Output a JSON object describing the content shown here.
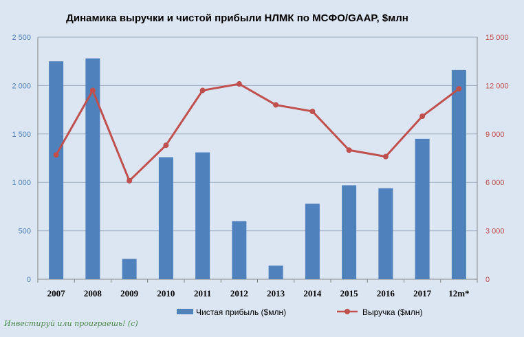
{
  "chart_data": {
    "type": "bar",
    "title": "Динамика выручки  и чистой прибыли НЛМК по МСФО/GAAP, $млн",
    "categories": [
      "2007",
      "2008",
      "2009",
      "2010",
      "2011",
      "2012",
      "2013",
      "2014",
      "2015",
      "2016",
      "2017",
      "12m*"
    ],
    "series": [
      {
        "name": "Чистая прибыль ($млн)",
        "type": "bar",
        "axis": "left",
        "color": "#4f81bd",
        "values": [
          2250,
          2280,
          210,
          1260,
          1310,
          600,
          140,
          780,
          970,
          940,
          1450,
          2160
        ]
      },
      {
        "name": "Выручка ($млн)",
        "type": "line",
        "axis": "right",
        "color": "#c0504d",
        "values": [
          7700,
          11700,
          6100,
          8300,
          11700,
          12100,
          10800,
          10400,
          8000,
          7600,
          10100,
          11800
        ]
      }
    ],
    "left_axis": {
      "ylim": [
        0,
        2500
      ],
      "ticks": [
        0,
        500,
        1000,
        1500,
        2000,
        2500
      ],
      "tick_labels": [
        "0",
        "500",
        "1 000",
        "1 500",
        "2 000",
        "2 500"
      ]
    },
    "right_axis": {
      "ylim": [
        0,
        15000
      ],
      "ticks": [
        0,
        3000,
        6000,
        9000,
        12000,
        15000
      ],
      "tick_labels": [
        "0",
        "3 000",
        "6 000",
        "9 000",
        "12 000",
        "15 000"
      ]
    },
    "grid": true,
    "legend": "bottom"
  },
  "watermark": "Инвестируй или проиграешь! (с)"
}
